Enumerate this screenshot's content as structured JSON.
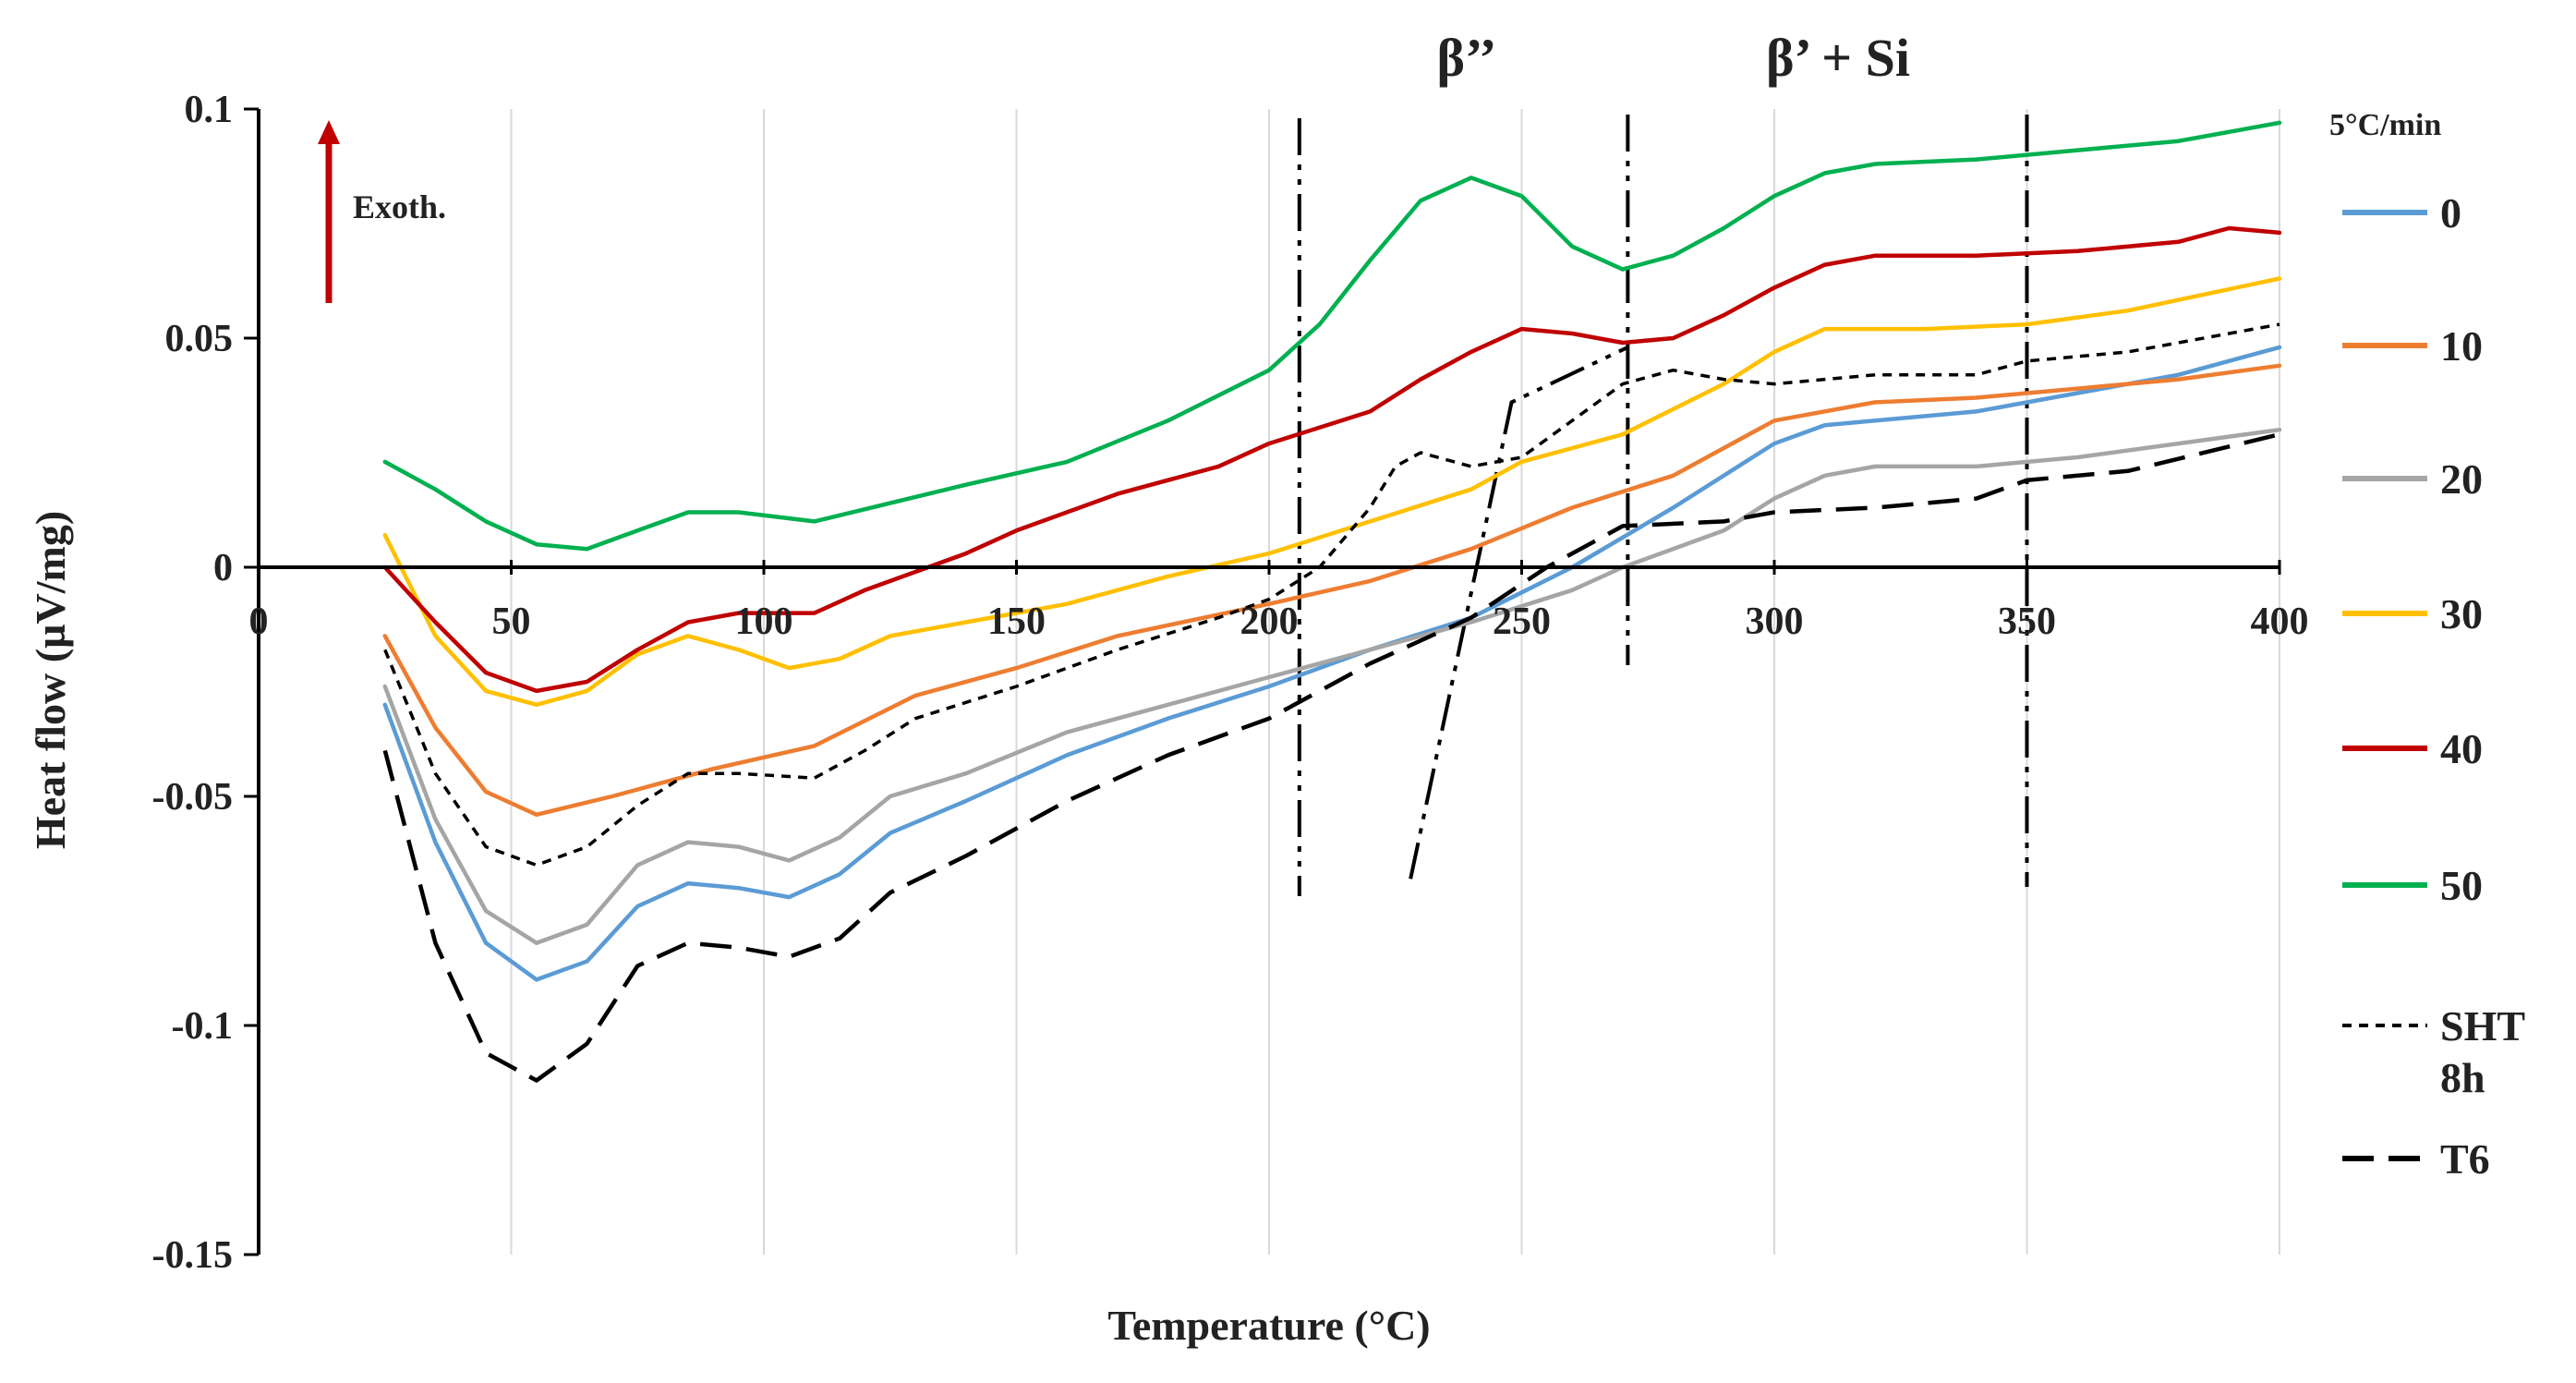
{
  "chart_data": {
    "type": "line",
    "title": "",
    "xlabel": "Temperature (°C)",
    "ylabel": "Heat flow (µV/mg)",
    "xlim": [
      0,
      400
    ],
    "ylim": [
      -0.15,
      0.1
    ],
    "x_ticks": [
      0,
      50,
      100,
      150,
      200,
      250,
      300,
      350,
      400
    ],
    "x_tick_labels": [
      "0",
      "50",
      "100",
      "150",
      "200",
      "250",
      "300",
      "350",
      "400"
    ],
    "y_ticks": [
      0.1,
      0.05,
      0,
      -0.05,
      -0.1,
      -0.15
    ],
    "y_tick_labels": [
      "0.1",
      "0.05",
      "0",
      "-0.05",
      "-0.1",
      "-0.15"
    ],
    "grid": "vertical",
    "legend_title": "5°C/min",
    "exotherm_label": "Exoth.",
    "phase_labels": [
      {
        "text": "β’’",
        "x": 240
      },
      {
        "text": "β’ + Si",
        "x": 300
      }
    ],
    "reference_lines": [
      206,
      271,
      350
    ],
    "reference_sloped": [
      [
        228,
        -0.068
      ],
      [
        248,
        0.036
      ],
      [
        271,
        0.048
      ]
    ],
    "series": [
      {
        "name": "0",
        "color": "#5b9bd5",
        "dash": "solid",
        "points": [
          [
            25,
            -0.03
          ],
          [
            35,
            -0.06
          ],
          [
            45,
            -0.082
          ],
          [
            55,
            -0.09
          ],
          [
            65,
            -0.086
          ],
          [
            75,
            -0.074
          ],
          [
            85,
            -0.069
          ],
          [
            95,
            -0.07
          ],
          [
            105,
            -0.072
          ],
          [
            115,
            -0.067
          ],
          [
            125,
            -0.058
          ],
          [
            140,
            -0.051
          ],
          [
            160,
            -0.041
          ],
          [
            180,
            -0.033
          ],
          [
            200,
            -0.026
          ],
          [
            220,
            -0.018
          ],
          [
            240,
            -0.011
          ],
          [
            260,
            0.0
          ],
          [
            280,
            0.013
          ],
          [
            300,
            0.027
          ],
          [
            310,
            0.031
          ],
          [
            320,
            0.032
          ],
          [
            340,
            0.034
          ],
          [
            360,
            0.038
          ],
          [
            380,
            0.042
          ],
          [
            400,
            0.048
          ]
        ]
      },
      {
        "name": "10",
        "color": "#ed7d31",
        "dash": "solid",
        "points": [
          [
            25,
            -0.015
          ],
          [
            35,
            -0.035
          ],
          [
            45,
            -0.049
          ],
          [
            55,
            -0.054
          ],
          [
            70,
            -0.05
          ],
          [
            90,
            -0.044
          ],
          [
            110,
            -0.039
          ],
          [
            130,
            -0.028
          ],
          [
            150,
            -0.022
          ],
          [
            170,
            -0.015
          ],
          [
            200,
            -0.008
          ],
          [
            220,
            -0.003
          ],
          [
            240,
            0.004
          ],
          [
            260,
            0.013
          ],
          [
            280,
            0.02
          ],
          [
            300,
            0.032
          ],
          [
            320,
            0.036
          ],
          [
            340,
            0.037
          ],
          [
            360,
            0.039
          ],
          [
            380,
            0.041
          ],
          [
            400,
            0.044
          ]
        ]
      },
      {
        "name": "20",
        "color": "#a5a5a5",
        "dash": "solid",
        "points": [
          [
            25,
            -0.026
          ],
          [
            35,
            -0.055
          ],
          [
            45,
            -0.075
          ],
          [
            55,
            -0.082
          ],
          [
            65,
            -0.078
          ],
          [
            75,
            -0.065
          ],
          [
            85,
            -0.06
          ],
          [
            95,
            -0.061
          ],
          [
            105,
            -0.064
          ],
          [
            115,
            -0.059
          ],
          [
            125,
            -0.05
          ],
          [
            140,
            -0.045
          ],
          [
            160,
            -0.036
          ],
          [
            180,
            -0.03
          ],
          [
            200,
            -0.024
          ],
          [
            220,
            -0.018
          ],
          [
            240,
            -0.012
          ],
          [
            260,
            -0.005
          ],
          [
            270,
            0.0
          ],
          [
            290,
            0.008
          ],
          [
            300,
            0.015
          ],
          [
            310,
            0.02
          ],
          [
            320,
            0.022
          ],
          [
            340,
            0.022
          ],
          [
            360,
            0.024
          ],
          [
            380,
            0.027
          ],
          [
            400,
            0.03
          ]
        ]
      },
      {
        "name": "30",
        "color": "#ffc000",
        "dash": "solid",
        "points": [
          [
            25,
            0.007
          ],
          [
            35,
            -0.015
          ],
          [
            45,
            -0.027
          ],
          [
            55,
            -0.03
          ],
          [
            65,
            -0.027
          ],
          [
            75,
            -0.019
          ],
          [
            85,
            -0.015
          ],
          [
            95,
            -0.018
          ],
          [
            105,
            -0.022
          ],
          [
            115,
            -0.02
          ],
          [
            125,
            -0.015
          ],
          [
            140,
            -0.012
          ],
          [
            160,
            -0.008
          ],
          [
            180,
            -0.002
          ],
          [
            200,
            0.003
          ],
          [
            220,
            0.01
          ],
          [
            240,
            0.017
          ],
          [
            250,
            0.023
          ],
          [
            270,
            0.029
          ],
          [
            290,
            0.04
          ],
          [
            300,
            0.047
          ],
          [
            310,
            0.052
          ],
          [
            330,
            0.052
          ],
          [
            350,
            0.053
          ],
          [
            370,
            0.056
          ],
          [
            400,
            0.063
          ]
        ]
      },
      {
        "name": "40",
        "color": "#c00000",
        "dash": "solid",
        "points": [
          [
            25,
            0.0
          ],
          [
            35,
            -0.012
          ],
          [
            45,
            -0.023
          ],
          [
            55,
            -0.027
          ],
          [
            65,
            -0.025
          ],
          [
            75,
            -0.018
          ],
          [
            85,
            -0.012
          ],
          [
            95,
            -0.01
          ],
          [
            110,
            -0.01
          ],
          [
            120,
            -0.005
          ],
          [
            130,
            -0.001
          ],
          [
            140,
            0.003
          ],
          [
            150,
            0.008
          ],
          [
            170,
            0.016
          ],
          [
            190,
            0.022
          ],
          [
            200,
            0.027
          ],
          [
            220,
            0.034
          ],
          [
            230,
            0.041
          ],
          [
            240,
            0.047
          ],
          [
            250,
            0.052
          ],
          [
            260,
            0.051
          ],
          [
            270,
            0.049
          ],
          [
            280,
            0.05
          ],
          [
            290,
            0.055
          ],
          [
            300,
            0.061
          ],
          [
            310,
            0.066
          ],
          [
            320,
            0.068
          ],
          [
            340,
            0.068
          ],
          [
            360,
            0.069
          ],
          [
            380,
            0.071
          ],
          [
            390,
            0.074
          ],
          [
            400,
            0.073
          ]
        ]
      },
      {
        "name": "50",
        "color": "#00b050",
        "dash": "solid",
        "points": [
          [
            25,
            0.023
          ],
          [
            35,
            0.017
          ],
          [
            45,
            0.01
          ],
          [
            55,
            0.005
          ],
          [
            65,
            0.004
          ],
          [
            75,
            0.008
          ],
          [
            85,
            0.012
          ],
          [
            95,
            0.012
          ],
          [
            110,
            0.01
          ],
          [
            125,
            0.014
          ],
          [
            140,
            0.018
          ],
          [
            160,
            0.023
          ],
          [
            180,
            0.032
          ],
          [
            200,
            0.043
          ],
          [
            210,
            0.053
          ],
          [
            220,
            0.067
          ],
          [
            230,
            0.08
          ],
          [
            240,
            0.085
          ],
          [
            250,
            0.081
          ],
          [
            260,
            0.07
          ],
          [
            270,
            0.065
          ],
          [
            280,
            0.068
          ],
          [
            290,
            0.074
          ],
          [
            300,
            0.081
          ],
          [
            310,
            0.086
          ],
          [
            320,
            0.088
          ],
          [
            340,
            0.089
          ],
          [
            360,
            0.091
          ],
          [
            380,
            0.093
          ],
          [
            400,
            0.097
          ]
        ]
      },
      {
        "name": "SHT 8h",
        "color": "#000000",
        "dash": "short",
        "points": [
          [
            25,
            -0.018
          ],
          [
            35,
            -0.045
          ],
          [
            45,
            -0.061
          ],
          [
            55,
            -0.065
          ],
          [
            65,
            -0.061
          ],
          [
            75,
            -0.052
          ],
          [
            85,
            -0.045
          ],
          [
            95,
            -0.045
          ],
          [
            110,
            -0.046
          ],
          [
            120,
            -0.04
          ],
          [
            130,
            -0.033
          ],
          [
            150,
            -0.026
          ],
          [
            170,
            -0.018
          ],
          [
            190,
            -0.011
          ],
          [
            200,
            -0.007
          ],
          [
            210,
            0.0
          ],
          [
            220,
            0.013
          ],
          [
            225,
            0.022
          ],
          [
            230,
            0.025
          ],
          [
            240,
            0.022
          ],
          [
            250,
            0.024
          ],
          [
            260,
            0.032
          ],
          [
            270,
            0.04
          ],
          [
            280,
            0.043
          ],
          [
            290,
            0.041
          ],
          [
            300,
            0.04
          ],
          [
            320,
            0.042
          ],
          [
            340,
            0.042
          ],
          [
            350,
            0.045
          ],
          [
            370,
            0.047
          ],
          [
            400,
            0.053
          ]
        ]
      },
      {
        "name": "T6",
        "color": "#000000",
        "dash": "long",
        "points": [
          [
            25,
            -0.04
          ],
          [
            35,
            -0.082
          ],
          [
            45,
            -0.106
          ],
          [
            55,
            -0.112
          ],
          [
            65,
            -0.104
          ],
          [
            75,
            -0.087
          ],
          [
            85,
            -0.082
          ],
          [
            95,
            -0.083
          ],
          [
            105,
            -0.085
          ],
          [
            115,
            -0.081
          ],
          [
            125,
            -0.071
          ],
          [
            140,
            -0.063
          ],
          [
            160,
            -0.051
          ],
          [
            180,
            -0.041
          ],
          [
            200,
            -0.033
          ],
          [
            220,
            -0.021
          ],
          [
            240,
            -0.011
          ],
          [
            255,
            0.0
          ],
          [
            270,
            0.009
          ],
          [
            290,
            0.01
          ],
          [
            300,
            0.012
          ],
          [
            320,
            0.013
          ],
          [
            340,
            0.015
          ],
          [
            350,
            0.019
          ],
          [
            370,
            0.021
          ],
          [
            400,
            0.029
          ]
        ]
      }
    ],
    "legend_entries": [
      {
        "label": "0"
      },
      {
        "label": "10"
      },
      {
        "label": "20"
      },
      {
        "label": "30"
      },
      {
        "label": "40"
      },
      {
        "label": "50"
      },
      {
        "label_line1": "SHT",
        "label_line2": "8h"
      },
      {
        "label": "T6"
      }
    ]
  },
  "colors": {
    "axis": "#000000",
    "grid": "#d9d9d9",
    "exotherm_arrow": "#c00000"
  }
}
